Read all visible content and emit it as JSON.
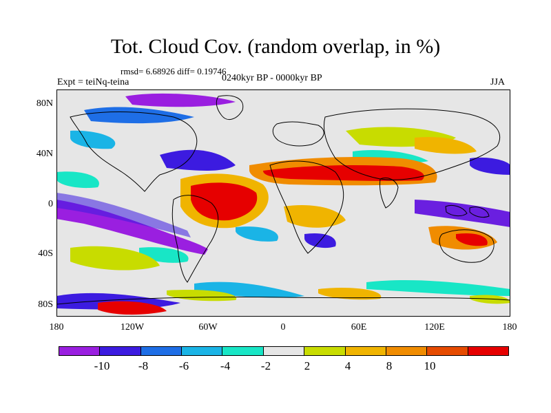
{
  "title": "Tot. Cloud Cov. (random overlap, in %)",
  "stats": "rmsd= 6.68926 diff= 0.19746",
  "experiment": "Expt = teiNq-teina",
  "period": "0240kyr BP - 0000kyr BP",
  "season": "JJA",
  "map": {
    "background_color": "#e6e6e6",
    "lat_labels": [
      "80N",
      "40N",
      "0",
      "40S",
      "80S"
    ],
    "lon_labels": [
      "180",
      "120W",
      "60W",
      "0",
      "60E",
      "120E",
      "180"
    ]
  },
  "colorbar": {
    "colors": [
      "#9a1fe0",
      "#3c1be0",
      "#1e6ee6",
      "#1ab4e6",
      "#18e6c6",
      "#e6e6e6",
      "#c8dc00",
      "#f0b400",
      "#f08c00",
      "#e64b00",
      "#e60000"
    ],
    "labels": [
      "-10",
      "-8",
      "-6",
      "-4",
      "-2",
      "2",
      "4",
      "8",
      "10"
    ]
  }
}
